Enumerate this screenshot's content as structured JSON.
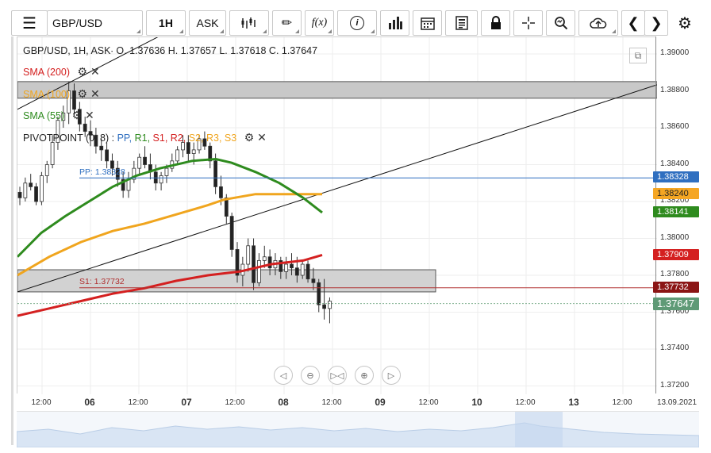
{
  "toolbar": {
    "symbol": "GBP/USD",
    "timeframe": "1H",
    "price_type": "ASK",
    "fx_label": "f(x)",
    "icons": [
      "menu-icon",
      "candles-icon",
      "pencil-icon",
      "function-icon",
      "info-icon",
      "bars-icon",
      "calendar-icon",
      "news-icon",
      "lock-icon",
      "crosshair-icon",
      "zoom-icon",
      "cloud-upload-icon",
      "chevron-left-icon",
      "chevron-right-icon",
      "gear-icon"
    ]
  },
  "legend": {
    "header": "GBP/USD, 1H, ASK∙ O. 1.37636 H. 1.37657 L. 1.37618 C. 1.37647",
    "sma200": "SMA (200)",
    "sma100": "SMA (100)",
    "sma55": "SMA (55)",
    "pivot_prefix": "PIVOTPOINT (0, 8) :",
    "pivot_pp": "PP,",
    "pivot_r1": "R1,",
    "pivot_s1": "S1,",
    "pivot_r2": "R2,",
    "pivot_s2": "S2,",
    "pivot_r3": "R3,",
    "pivot_s3": "S3"
  },
  "annotations": {
    "pp": "PP: 1.38328",
    "s1": "S1: 1.37732"
  },
  "y_axis": [
    "1.39000",
    "1.38800",
    "1.38600",
    "1.38400",
    "1.38200",
    "1.38000",
    "1.37800",
    "1.37600",
    "1.37400",
    "1.37200"
  ],
  "x_axis": [
    {
      "label": "12:00",
      "major": false
    },
    {
      "label": "06",
      "major": true
    },
    {
      "label": "12:00",
      "major": false
    },
    {
      "label": "07",
      "major": true
    },
    {
      "label": "12:00",
      "major": false
    },
    {
      "label": "08",
      "major": true
    },
    {
      "label": "12:00",
      "major": false
    },
    {
      "label": "09",
      "major": true
    },
    {
      "label": "12:00",
      "major": false
    },
    {
      "label": "10",
      "major": true
    },
    {
      "label": "12:00",
      "major": false
    },
    {
      "label": "13",
      "major": true
    },
    {
      "label": "12:00",
      "major": false
    },
    {
      "label": "13.09.2021",
      "major": false
    }
  ],
  "price_tags": [
    {
      "value": "1.38328",
      "color": "#2f6fc0",
      "text": "#ffffff"
    },
    {
      "value": "1.38240",
      "color": "#f5a623",
      "text": "#222222"
    },
    {
      "value": "1.38141",
      "color": "#2e8b1e",
      "text": "#ffffff"
    },
    {
      "value": "1.37909",
      "color": "#d42020",
      "text": "#ffffff"
    },
    {
      "value": "1.37732",
      "color": "#8b1515",
      "text": "#ffffff"
    },
    {
      "value": "1.37647",
      "color": "#5f9a76",
      "text": "#ffffff"
    }
  ],
  "colors": {
    "sma200": "#d42020",
    "sma100": "#f0a51e",
    "sma55": "#2e8b1e",
    "pp": "#2f6fc0",
    "s1": "#b03030",
    "bull": "#ffffff",
    "bear": "#222222"
  }
}
